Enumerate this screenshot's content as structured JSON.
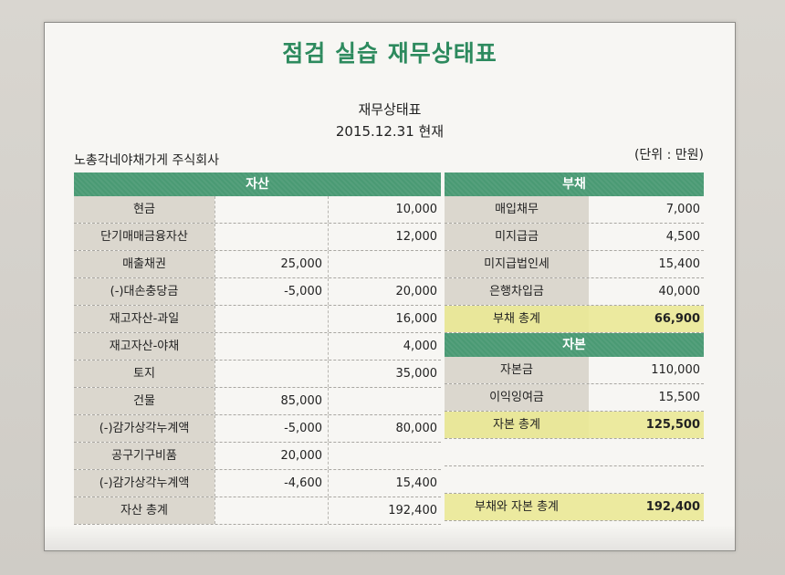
{
  "title": "점검 실습 재무상태표",
  "doc_title": "재무상태표",
  "doc_date": "2015.12.31 현재",
  "company": "노총각네야채가게 주식회사",
  "unit": "(단위 : 만원)",
  "assets": {
    "header": "자산",
    "rows": [
      {
        "label": "현금",
        "v1": "",
        "v2": "10,000"
      },
      {
        "label": "단기매매금융자산",
        "v1": "",
        "v2": "12,000"
      },
      {
        "label": "매출채권",
        "v1": "25,000",
        "v2": ""
      },
      {
        "label": "(-)대손충당금",
        "v1": "-5,000",
        "v2": "20,000"
      },
      {
        "label": "재고자산-과일",
        "v1": "",
        "v2": "16,000"
      },
      {
        "label": "재고자산-야채",
        "v1": "",
        "v2": "4,000"
      },
      {
        "label": "토지",
        "v1": "",
        "v2": "35,000"
      },
      {
        "label": "건물",
        "v1": "85,000",
        "v2": ""
      },
      {
        "label": "(-)감가상각누계액",
        "v1": "-5,000",
        "v2": "80,000"
      },
      {
        "label": "공구기구비품",
        "v1": "20,000",
        "v2": ""
      },
      {
        "label": "(-)감가상각누계액",
        "v1": "-4,600",
        "v2": "15,400"
      },
      {
        "label": "자산 총계",
        "v1": "",
        "v2": "192,400"
      }
    ]
  },
  "liabilities": {
    "header": "부채",
    "rows": [
      {
        "label": "매입채무",
        "value": "7,000"
      },
      {
        "label": "미지급금",
        "value": "4,500"
      },
      {
        "label": "미지급법인세",
        "value": "15,400"
      },
      {
        "label": "은행차입금",
        "value": "40,000"
      }
    ],
    "total": {
      "label": "부채 총계",
      "value": "66,900"
    }
  },
  "equity": {
    "header": "자본",
    "rows": [
      {
        "label": "자본금",
        "value": "110,000"
      },
      {
        "label": "이익잉여금",
        "value": "15,500"
      }
    ],
    "total": {
      "label": "자본 총계",
      "value": "125,500"
    }
  },
  "grand_total": {
    "label": "부채와 자본 총계",
    "value": "192,400"
  },
  "colors": {
    "header_green": "#4a9a74",
    "title_green": "#2d8a5e",
    "total_yellow": "#ecea9f"
  }
}
